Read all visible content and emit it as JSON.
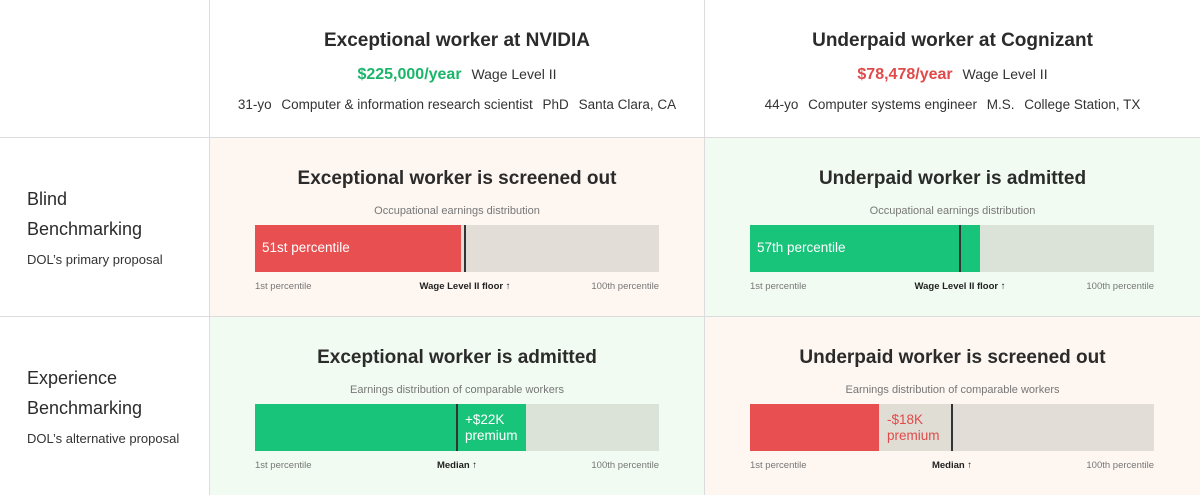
{
  "workers": [
    {
      "title": "Exceptional worker at NVIDIA",
      "wage": "$225,000/year",
      "wage_color": "#1bb56a",
      "level": "Wage Level II",
      "age": "31-yo",
      "occupation": "Computer & information research scientist",
      "degree": "PhD",
      "location": "Santa Clara, CA"
    },
    {
      "title": "Underpaid worker at Cognizant",
      "wage": "$78,478/year",
      "wage_color": "#e04a4a",
      "level": "Wage Level II",
      "age": "44-yo",
      "occupation": "Computer systems engineer",
      "degree": "M.S.",
      "location": "College Station, TX"
    }
  ],
  "rows": [
    {
      "title_line1": "Blind",
      "title_line2": "Benchmarking",
      "subtitle": "DOL’s primary proposal",
      "cells": [
        {
          "verdict": "Exceptional worker is screened out",
          "outcome": "screened out",
          "dist_label": "Occupational earnings distribution",
          "fill_fraction": 0.51,
          "fill_text": "51st percentile",
          "marker_fraction": 0.52,
          "axis_left": "1st percentile",
          "axis_mid": "Wage Level II floor ↑",
          "axis_right": "100th percentile"
        },
        {
          "verdict": "Underpaid worker is admitted",
          "outcome": "admitted",
          "dist_label": "Occupational earnings distribution",
          "fill_fraction": 0.57,
          "fill_text": "57th percentile",
          "marker_fraction": 0.52,
          "axis_left": "1st percentile",
          "axis_mid": "Wage Level II floor ↑",
          "axis_right": "100th percentile"
        }
      ]
    },
    {
      "title_line1": "Experience",
      "title_line2": "Benchmarking",
      "subtitle": "DOL’s alternative proposal",
      "cells": [
        {
          "verdict": "Exceptional worker is admitted",
          "outcome": "admitted",
          "dist_label": "Earnings distribution of comparable workers",
          "fill_fraction": 0.67,
          "median_fraction": 0.5,
          "premium_line1": "+$22K",
          "premium_line2": "premium",
          "axis_left": "1st percentile",
          "axis_mid": "Median ↑",
          "axis_right": "100th percentile"
        },
        {
          "verdict": "Underpaid worker is screened out",
          "outcome": "screened out",
          "dist_label": "Earnings distribution of comparable workers",
          "fill_fraction": 0.32,
          "median_fraction": 0.5,
          "premium_line1": "-$18K",
          "premium_line2": "premium",
          "axis_left": "1st percentile",
          "axis_mid": "Median ↑",
          "axis_right": "100th percentile"
        }
      ]
    }
  ],
  "colors": {
    "red_fill": "#e84f50",
    "green_fill": "#18c37a",
    "red_bg": "#fdf6f1",
    "green_bg": "#f1fbf1"
  }
}
